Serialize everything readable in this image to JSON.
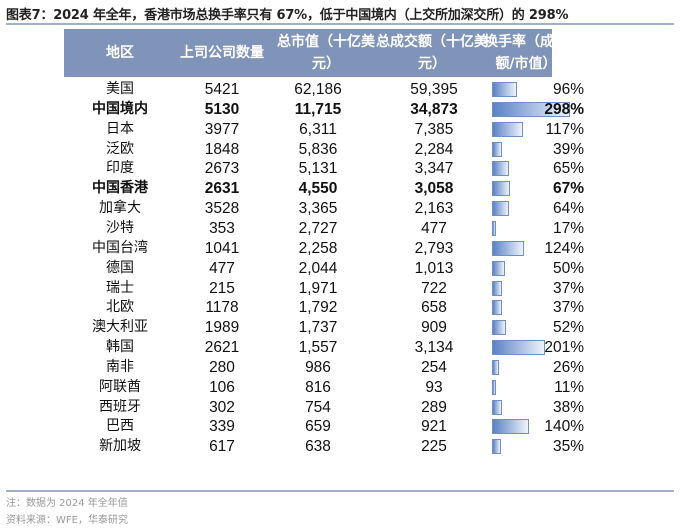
{
  "title": "图表7：2024 年全年，香港市场总换手率只有 67%，低于中国境内（上交所加深交所）的 298%",
  "headers": {
    "region": "地区",
    "count": "上司公司数量",
    "mktcap": "总市值（十亿美元）",
    "turnover": "总成交额（十亿美元）",
    "ratio": "换手率（成交额/市值）"
  },
  "bar_color": "#5a82c4",
  "header_color": "#8094b9",
  "rows": [
    {
      "region": "美国",
      "count": "5421",
      "mktcap": "62,186",
      "turnover": "59,395",
      "ratio": "96%",
      "ratio_value": 96,
      "bold": false
    },
    {
      "region": "中国境内",
      "count": "5130",
      "mktcap": "11,715",
      "turnover": "34,873",
      "ratio": "298%",
      "ratio_value": 298,
      "bold": true
    },
    {
      "region": "日本",
      "count": "3977",
      "mktcap": "6,311",
      "turnover": "7,385",
      "ratio": "117%",
      "ratio_value": 117,
      "bold": false
    },
    {
      "region": "泛欧",
      "count": "1848",
      "mktcap": "5,836",
      "turnover": "2,284",
      "ratio": "39%",
      "ratio_value": 39,
      "bold": false
    },
    {
      "region": "印度",
      "count": "2673",
      "mktcap": "5,131",
      "turnover": "3,347",
      "ratio": "65%",
      "ratio_value": 65,
      "bold": false
    },
    {
      "region": "中国香港",
      "count": "2631",
      "mktcap": "4,550",
      "turnover": "3,058",
      "ratio": "67%",
      "ratio_value": 67,
      "bold": true
    },
    {
      "region": "加拿大",
      "count": "3528",
      "mktcap": "3,365",
      "turnover": "2,163",
      "ratio": "64%",
      "ratio_value": 64,
      "bold": false
    },
    {
      "region": "沙特",
      "count": "353",
      "mktcap": "2,727",
      "turnover": "477",
      "ratio": "17%",
      "ratio_value": 17,
      "bold": false
    },
    {
      "region": "中国台湾",
      "count": "1041",
      "mktcap": "2,258",
      "turnover": "2,793",
      "ratio": "124%",
      "ratio_value": 124,
      "bold": false
    },
    {
      "region": "德国",
      "count": "477",
      "mktcap": "2,044",
      "turnover": "1,013",
      "ratio": "50%",
      "ratio_value": 50,
      "bold": false
    },
    {
      "region": "瑞士",
      "count": "215",
      "mktcap": "1,971",
      "turnover": "722",
      "ratio": "37%",
      "ratio_value": 37,
      "bold": false
    },
    {
      "region": "北欧",
      "count": "1178",
      "mktcap": "1,792",
      "turnover": "658",
      "ratio": "37%",
      "ratio_value": 37,
      "bold": false
    },
    {
      "region": "澳大利亚",
      "count": "1989",
      "mktcap": "1,737",
      "turnover": "909",
      "ratio": "52%",
      "ratio_value": 52,
      "bold": false
    },
    {
      "region": "韩国",
      "count": "2621",
      "mktcap": "1,557",
      "turnover": "3,134",
      "ratio": "201%",
      "ratio_value": 201,
      "bold": false
    },
    {
      "region": "南非",
      "count": "280",
      "mktcap": "986",
      "turnover": "254",
      "ratio": "26%",
      "ratio_value": 26,
      "bold": false
    },
    {
      "region": "阿联酋",
      "count": "106",
      "mktcap": "816",
      "turnover": "93",
      "ratio": "11%",
      "ratio_value": 11,
      "bold": false
    },
    {
      "region": "西班牙",
      "count": "302",
      "mktcap": "754",
      "turnover": "289",
      "ratio": "38%",
      "ratio_value": 38,
      "bold": false
    },
    {
      "region": "巴西",
      "count": "339",
      "mktcap": "659",
      "turnover": "921",
      "ratio": "140%",
      "ratio_value": 140,
      "bold": false
    },
    {
      "region": "新加坡",
      "count": "617",
      "mktcap": "638",
      "turnover": "225",
      "ratio": "35%",
      "ratio_value": 35,
      "bold": false
    }
  ],
  "note": "注：数据为 2024 年全年值",
  "source": "资料来源：WFE，华泰研究"
}
